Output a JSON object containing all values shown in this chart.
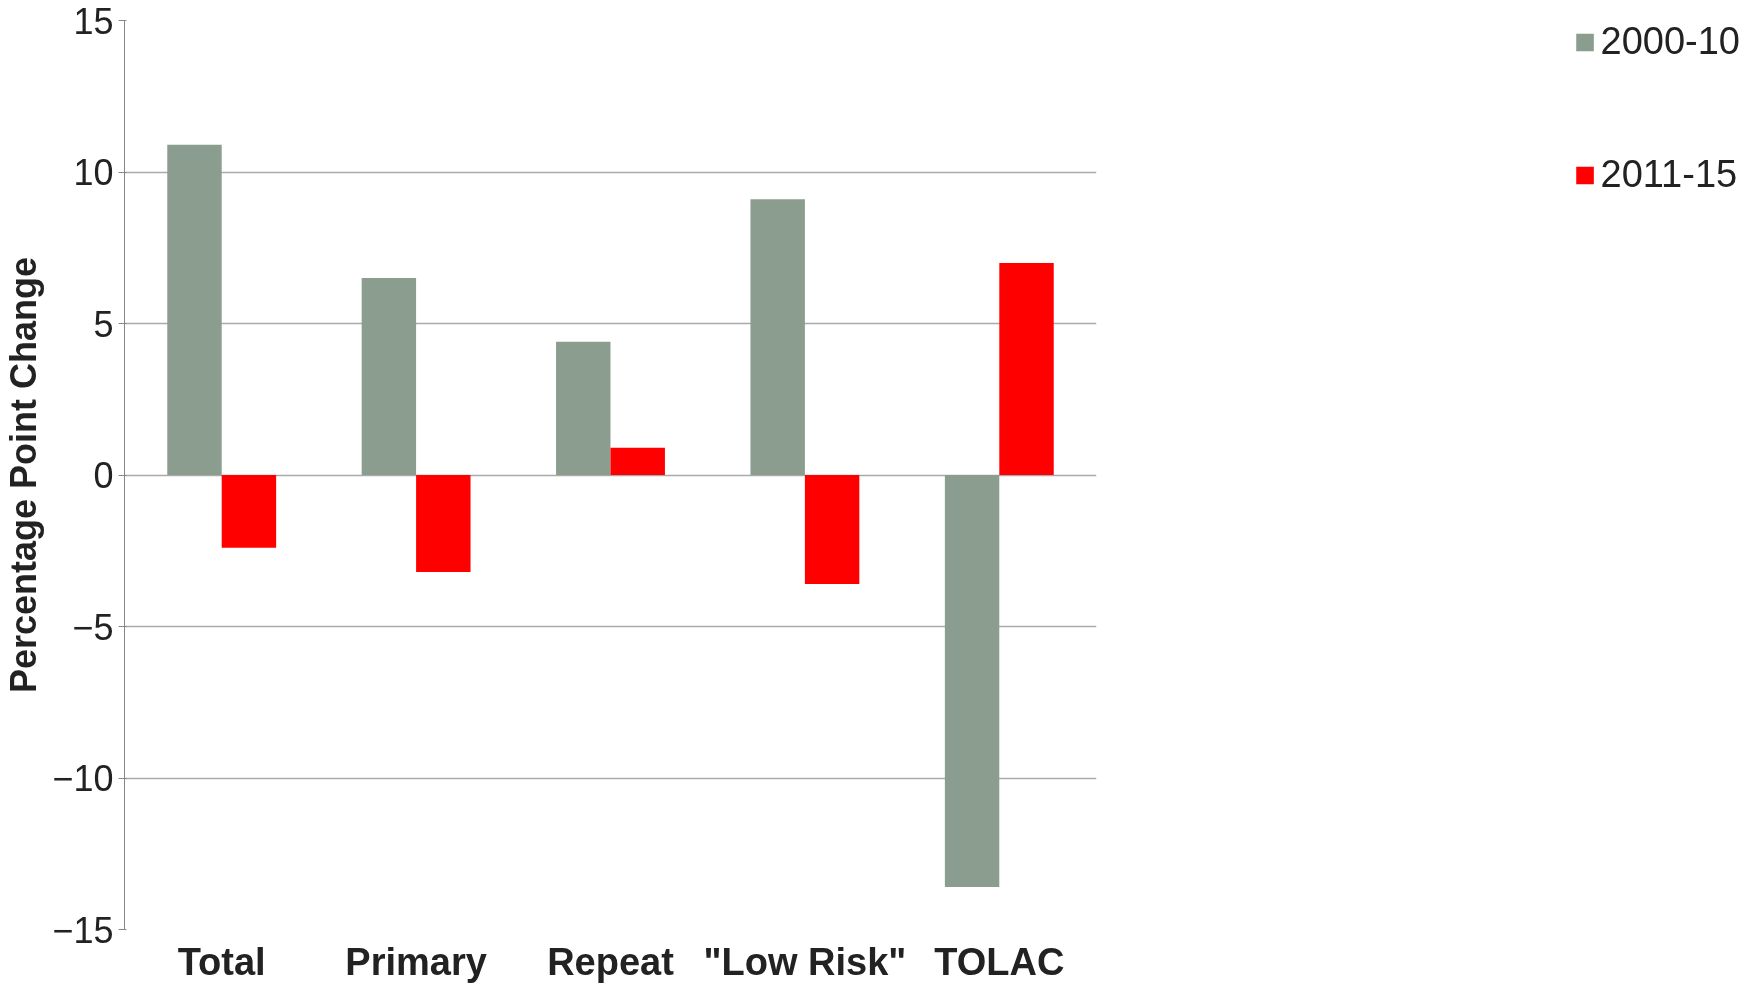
{
  "chart_data": {
    "type": "bar",
    "ylabel": "Percentage Point Change",
    "categories": [
      "Total",
      "Primary",
      "Repeat",
      "\"Low Risk\"",
      "TOLAC"
    ],
    "series": [
      {
        "name": "2000-10",
        "color": "#8a9d8f",
        "values": [
          10.9,
          6.5,
          4.4,
          9.1,
          -13.6
        ]
      },
      {
        "name": "2011-15",
        "color": "#ff0000",
        "values": [
          -2.4,
          -3.2,
          0.9,
          -3.6,
          7.0
        ]
      }
    ],
    "ylim": [
      -15,
      15
    ],
    "yticks": [
      -15,
      -10,
      -5,
      0,
      5,
      10,
      15
    ],
    "grid": "y",
    "legend": "right"
  }
}
